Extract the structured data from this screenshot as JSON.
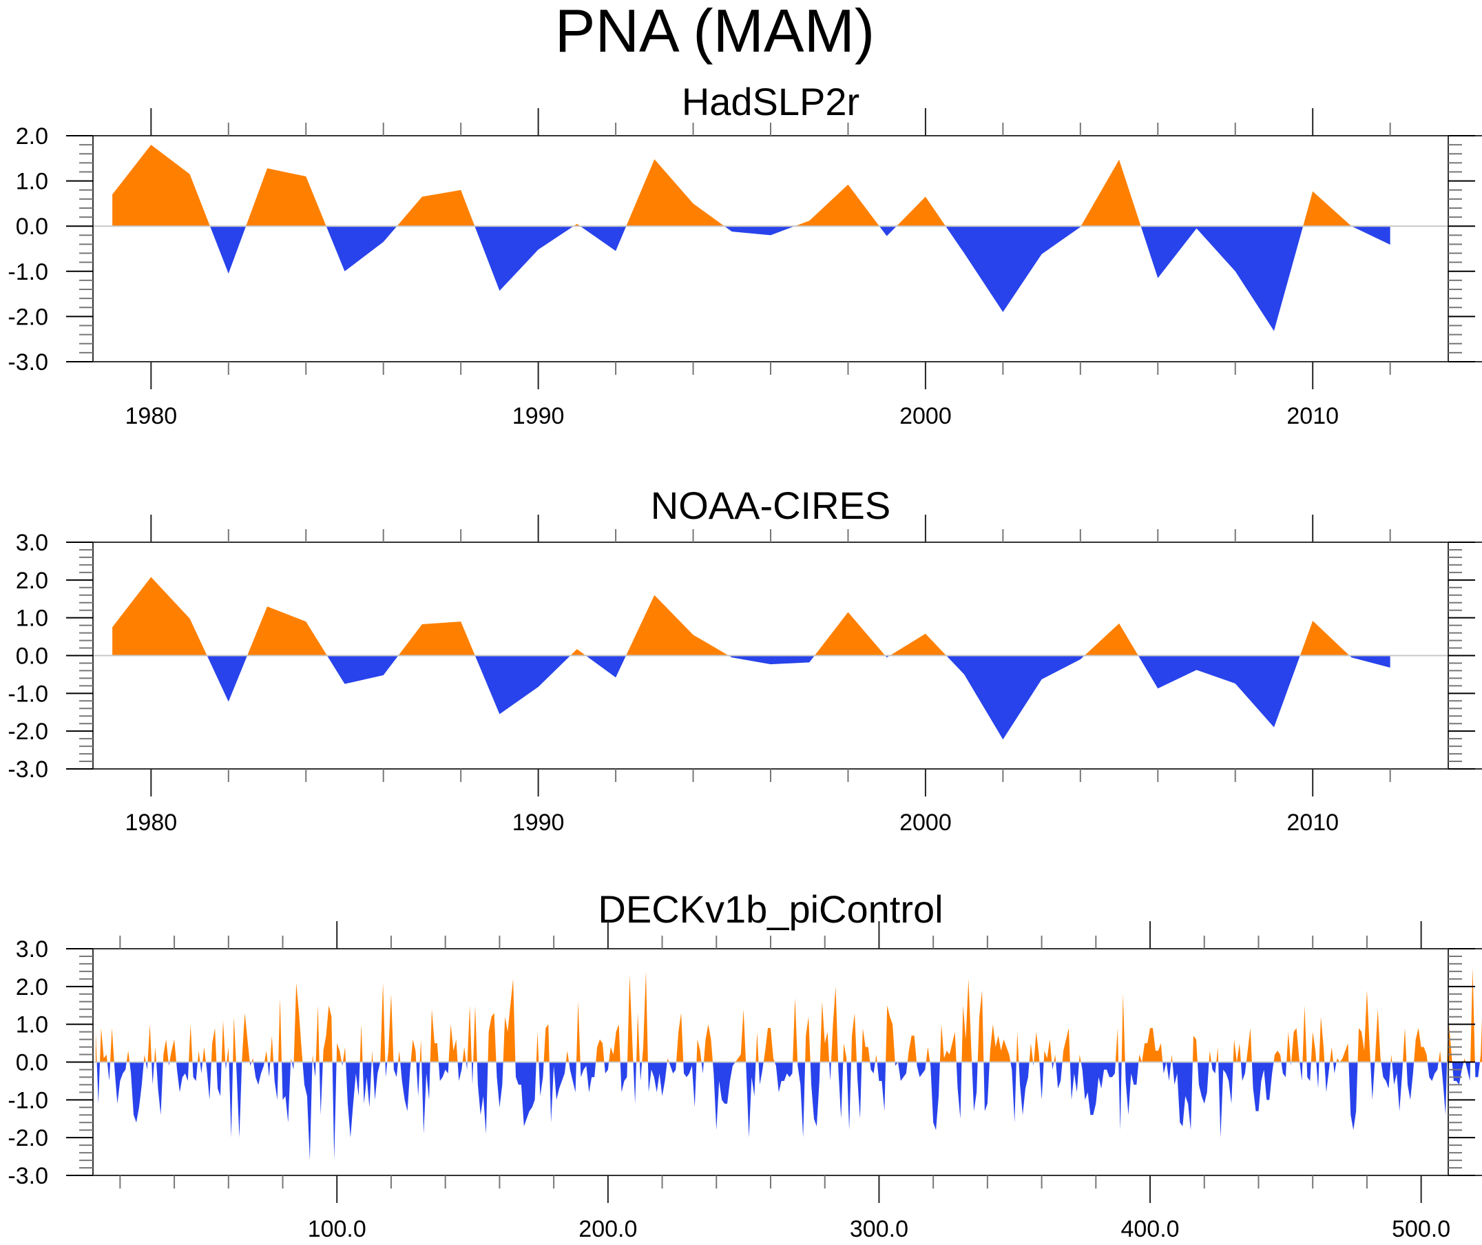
{
  "figure": {
    "title": "PNA (MAM)"
  },
  "colors": {
    "positive": "#ff8000",
    "negative": "#2843eb",
    "zero_line": "#c8c8c8",
    "axis": "#000000"
  },
  "chart_data": [
    {
      "type": "area",
      "title": "HadSLP2r",
      "xlabel": "",
      "ylabel": "",
      "xlim": [
        1978.5,
        2013.5
      ],
      "ylim": [
        -3.0,
        2.0
      ],
      "yticks": [
        2.0,
        1.0,
        0.0,
        -1.0,
        -2.0,
        -3.0
      ],
      "ytick_labels": [
        "2.0",
        "1.0",
        "0.0",
        "-1.0",
        "-2.0",
        "-3.0"
      ],
      "xticks": [
        1980,
        1990,
        2000,
        2010
      ],
      "xtick_labels": [
        "1980",
        "1990",
        "2000",
        "2010"
      ],
      "x_minor_step": 2,
      "y_minor_step": 0.2,
      "grid": false,
      "fill_above_zero": "positive",
      "fill_below_zero": "negative",
      "x": [
        1979,
        1980,
        1981,
        1982,
        1983,
        1984,
        1985,
        1986,
        1987,
        1988,
        1989,
        1990,
        1991,
        1992,
        1993,
        1994,
        1995,
        1996,
        1997,
        1998,
        1999,
        2000,
        2001,
        2002,
        2003,
        2004,
        2005,
        2006,
        2007,
        2008,
        2009,
        2010,
        2011,
        2012
      ],
      "values": [
        0.7,
        1.8,
        1.15,
        -1.05,
        1.28,
        1.1,
        -1.0,
        -0.35,
        0.65,
        0.8,
        -1.43,
        -0.52,
        0.05,
        -0.55,
        1.48,
        0.5,
        -0.12,
        -0.2,
        0.12,
        0.92,
        -0.22,
        0.65,
        -0.6,
        -1.9,
        -0.62,
        -0.02,
        1.47,
        -1.15,
        -0.05,
        -1.0,
        -2.32,
        0.77,
        0.0,
        -0.41
      ]
    },
    {
      "type": "area",
      "title": "NOAA-CIRES",
      "xlabel": "",
      "ylabel": "",
      "xlim": [
        1978.5,
        2013.5
      ],
      "ylim": [
        -3.0,
        3.0
      ],
      "yticks": [
        3.0,
        2.0,
        1.0,
        0.0,
        -1.0,
        -2.0,
        -3.0
      ],
      "ytick_labels": [
        "3.0",
        "2.0",
        "1.0",
        "0.0",
        "-1.0",
        "-2.0",
        "-3.0"
      ],
      "xticks": [
        1980,
        1990,
        2000,
        2010
      ],
      "xtick_labels": [
        "1980",
        "1990",
        "2000",
        "2010"
      ],
      "x_minor_step": 2,
      "y_minor_step": 0.2,
      "grid": false,
      "fill_above_zero": "positive",
      "fill_below_zero": "negative",
      "x": [
        1979,
        1980,
        1981,
        1982,
        1983,
        1984,
        1985,
        1986,
        1987,
        1988,
        1989,
        1990,
        1991,
        1992,
        1993,
        1994,
        1995,
        1996,
        1997,
        1998,
        1999,
        2000,
        2001,
        2002,
        2003,
        2004,
        2005,
        2006,
        2007,
        2008,
        2009,
        2010,
        2011,
        2012
      ],
      "values": [
        0.75,
        2.08,
        0.98,
        -1.22,
        1.3,
        0.9,
        -0.75,
        -0.52,
        0.83,
        0.9,
        -1.55,
        -0.83,
        0.17,
        -0.58,
        1.6,
        0.55,
        -0.05,
        -0.23,
        -0.18,
        1.15,
        -0.05,
        0.58,
        -0.5,
        -2.22,
        -0.63,
        -0.1,
        0.85,
        -0.87,
        -0.38,
        -0.74,
        -1.9,
        0.92,
        -0.05,
        -0.32
      ]
    },
    {
      "type": "area",
      "title": "DECKv1b_piControl",
      "xlabel": "",
      "ylabel": "",
      "xlim": [
        10,
        510
      ],
      "ylim": [
        -3.0,
        3.0
      ],
      "yticks": [
        3.0,
        2.0,
        1.0,
        0.0,
        -1.0,
        -2.0,
        -3.0
      ],
      "ytick_labels": [
        "3.0",
        "2.0",
        "1.0",
        "0.0",
        "-1.0",
        "-2.0",
        "-3.0"
      ],
      "xticks": [
        100,
        200,
        300,
        400,
        500
      ],
      "xtick_labels": [
        "100.0",
        "200.0",
        "300.0",
        "400.0",
        "500.0"
      ],
      "x_minor_step": 20,
      "y_minor_step": 0.2,
      "grid": false,
      "fill_above_zero": "positive",
      "fill_below_zero": "negative",
      "x_start": 11,
      "x_step": 1,
      "values": [
        0.8,
        -1.1,
        0.9,
        0.1,
        0.2,
        -0.5,
        0.9,
        -0.2,
        -1.1,
        -0.5,
        -0.3,
        -0.2,
        0.3,
        -0.3,
        -1.4,
        -1.6,
        -1.2,
        -0.6,
        0.2,
        -0.2,
        1.0,
        -0.6,
        0.4,
        -0.7,
        -1.4,
        0.2,
        0.6,
        -0.1,
        0.3,
        0.6,
        -0.2,
        -0.8,
        -0.4,
        -0.3,
        -0.5,
        1.0,
        -0.4,
        -0.5,
        0.3,
        -0.3,
        0.4,
        -0.2,
        -1.0,
        0.5,
        0.9,
        -0.7,
        -0.9,
        1.1,
        -0.2,
        0.4,
        -2.0,
        1.2,
        -0.3,
        -2.0,
        0.1,
        1.3,
        0.6,
        -0.1,
        0.1,
        -0.4,
        -0.6,
        -0.3,
        -0.1,
        0.3,
        -0.4,
        0.7,
        -0.5,
        -1.0,
        1.7,
        -1.0,
        -0.9,
        -1.6,
        0.1,
        -0.2,
        2.1,
        1.3,
        0.3,
        -0.6,
        -0.9,
        -2.6,
        0.2,
        -0.4,
        1.5,
        -1.4,
        0.3,
        0.7,
        1.5,
        1.2,
        -2.6,
        0.5,
        0.3,
        -0.1,
        0.4,
        -1.1,
        -2.0,
        -1.1,
        -0.3,
        -0.9,
        1.0,
        -1.1,
        -0.4,
        -1.2,
        0.3,
        -1.0,
        -0.3,
        0.0,
        2.1,
        -0.4,
        0.3,
        1.8,
        -0.2,
        -0.4,
        0.3,
        -0.5,
        -1.0,
        -1.3,
        -0.2,
        0.6,
        0.3,
        -0.9,
        0.6,
        -1.9,
        -0.3,
        -1.0,
        1.4,
        0.5,
        0.5,
        -0.5,
        -0.4,
        -0.2,
        -0.3,
        1.0,
        0.3,
        0.6,
        -0.5,
        -0.2,
        0.4,
        -0.2,
        1.5,
        -0.6,
        1.5,
        -0.6,
        -1.4,
        -0.9,
        -1.9,
        0.8,
        1.2,
        1.3,
        -0.4,
        -1.2,
        -0.6,
        1.2,
        0.8,
        1.5,
        2.2,
        -0.4,
        -0.6,
        -0.6,
        -1.7,
        -1.5,
        -1.3,
        -1.2,
        -1.0,
        0.8,
        -0.9,
        -0.4,
        0.9,
        1.0,
        -1.6,
        -0.1,
        -1.0,
        -0.7,
        -0.5,
        -0.3,
        0.3,
        -0.2,
        -0.5,
        -0.8,
        1.6,
        -0.4,
        -0.2,
        -0.1,
        -0.8,
        -0.4,
        -0.4,
        0.4,
        0.6,
        0.5,
        -0.3,
        -0.2,
        0.4,
        0.2,
        0.8,
        1.0,
        -0.8,
        -0.5,
        -0.4,
        2.3,
        0.5,
        -1.1,
        1.3,
        -0.5,
        0.4,
        2.4,
        -0.8,
        -0.2,
        -0.4,
        -0.8,
        -0.3,
        -0.9,
        -0.5,
        0.1,
        -0.1,
        -0.3,
        -0.2,
        0.8,
        1.3,
        -0.3,
        -0.4,
        -0.3,
        -0.1,
        -1.2,
        0.6,
        0.3,
        -0.3,
        0.6,
        1.0,
        0.6,
        -0.3,
        -1.8,
        -0.5,
        -1.0,
        -1.1,
        -1.1,
        -0.5,
        -0.1,
        0.0,
        0.1,
        0.2,
        1.4,
        -0.2,
        -2.0,
        -0.4,
        -0.9,
        0.8,
        -0.6,
        -0.2,
        0.3,
        0.9,
        0.9,
        0.1,
        -0.1,
        -0.8,
        -0.5,
        -0.5,
        -0.3,
        -0.4,
        -0.3,
        1.7,
        -0.1,
        -0.6,
        -2.0,
        0.7,
        1.2,
        -0.6,
        -1.5,
        -1.7,
        -0.5,
        1.6,
        0.5,
        0.8,
        -0.5,
        1.0,
        2.0,
        -0.2,
        -1.5,
        0.5,
        0.1,
        -1.8,
        0.7,
        1.3,
        -0.4,
        -1.5,
        0.9,
        0.4,
        0.4,
        -0.2,
        -0.3,
        0.2,
        -0.5,
        -0.5,
        -1.3,
        1.5,
        1.2,
        1.0,
        -0.1,
        0.0,
        -0.5,
        -0.4,
        -0.3,
        0.3,
        0.7,
        0.7,
        -0.1,
        -0.4,
        -0.3,
        -0.2,
        0.4,
        -0.1,
        -1.6,
        -1.8,
        -0.9,
        1.0,
        0.1,
        0.3,
        0.2,
        0.5,
        0.8,
        -0.7,
        -1.5,
        1.5,
        0.6,
        2.2,
        0.4,
        -1.3,
        -0.8,
        1.2,
        1.9,
        -1.3,
        -1.1,
        0.3,
        1.0,
        0.4,
        0.7,
        0.3,
        0.6,
        0.4,
        0.2,
        -0.2,
        -1.6,
        0.8,
        -0.6,
        -1.4,
        -0.7,
        -0.4,
        0.5,
        -0.1,
        0.8,
        0.2,
        -1.0,
        0.3,
        0.1,
        0.6,
        -0.2,
        0.2,
        -0.7,
        -0.5,
        0.3,
        0.6,
        0.9,
        -1.0,
        -0.3,
        -0.8,
        0.2,
        -0.2,
        -1.0,
        -0.8,
        -1.4,
        -1.4,
        -1.1,
        -0.4,
        -0.7,
        -0.2,
        -0.2,
        -0.4,
        -0.4,
        -0.3,
        0.9,
        -1.8,
        1.8,
        -0.5,
        -1.4,
        -0.3,
        -0.6,
        -0.6,
        0.2,
        0.0,
        0.5,
        0.5,
        0.9,
        0.9,
        0.3,
        0.3,
        0.5,
        -0.3,
        0.0,
        -0.5,
        0.2,
        -0.6,
        -0.3,
        -1.6,
        -1.7,
        -0.9,
        -1.1,
        -1.8,
        0.7,
        0.6,
        -0.6,
        -0.9,
        -1.1,
        -0.8,
        0.3,
        -0.2,
        -0.3,
        0.4,
        -2.0,
        -0.2,
        -0.3,
        -0.5,
        -1.1,
        0.6,
        0.0,
        0.5,
        -0.5,
        -0.3,
        0.3,
        0.9,
        -0.7,
        -1.3,
        -1.3,
        -0.5,
        -0.2,
        -1.0,
        -1.0,
        -0.3,
        0.2,
        0.3,
        0.2,
        -0.3,
        -0.4,
        0.8,
        -0.1,
        0.8,
        0.9,
        0.1,
        -0.5,
        1.5,
        -0.4,
        -0.5,
        0.8,
        0.3,
        -0.7,
        1.2,
        0.4,
        -0.8,
        -0.2,
        0.4,
        -0.3,
        0.1,
        0.0,
        0.1,
        0.3,
        0.5,
        -1.4,
        -1.8,
        -1.3,
        0.9,
        0.8,
        0.3,
        1.9,
        0.4,
        -1.0,
        0.1,
        1.4,
        0.1,
        -0.4,
        -0.5,
        -0.7,
        0.2,
        -0.6,
        -0.3,
        -1.3,
        -0.3,
        0.9,
        -0.6,
        -1.0,
        -0.3,
        0.6,
        0.9,
        0.4,
        0.4,
        0.2,
        -0.4,
        -0.5,
        -0.3,
        -0.2,
        0.3,
        -0.5,
        -1.4,
        1.2,
        0.4,
        -0.5,
        -0.5,
        -0.6,
        -0.2,
        0.1,
        -0.2,
        -0.5,
        2.5,
        -0.4,
        -0.4,
        0.2,
        2.3,
        -0.1,
        0.4,
        0.5,
        0.1,
        -0.2,
        0.7,
        -0.9,
        -0.3,
        -0.5,
        0.2
      ]
    }
  ]
}
